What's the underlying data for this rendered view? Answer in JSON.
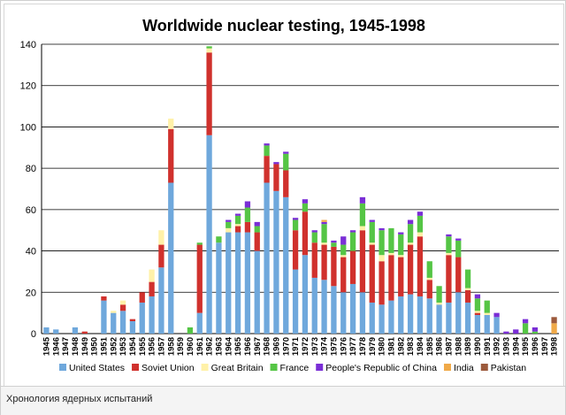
{
  "caption": "Хронология ядерных испытаний",
  "chart_data": {
    "type": "bar",
    "stacked": true,
    "title": "Worldwide nuclear testing, 1945-1998",
    "ylim": [
      0,
      140
    ],
    "yticks": [
      0,
      20,
      40,
      60,
      80,
      100,
      120,
      140
    ],
    "grid": true,
    "legend_position": "bottom",
    "categories": [
      "1945",
      "1946",
      "1947",
      "1948",
      "1949",
      "1950",
      "1951",
      "1952",
      "1953",
      "1954",
      "1955",
      "1956",
      "1957",
      "1958",
      "1959",
      "1960",
      "1961",
      "1962",
      "1963",
      "1964",
      "1965",
      "1966",
      "1967",
      "1968",
      "1969",
      "1970",
      "1971",
      "1972",
      "1973",
      "1974",
      "1975",
      "1976",
      "1977",
      "1978",
      "1979",
      "1980",
      "1981",
      "1982",
      "1983",
      "1984",
      "1985",
      "1986",
      "1987",
      "1988",
      "1989",
      "1990",
      "1991",
      "1992",
      "1993",
      "1994",
      "1995",
      "1996",
      "1997",
      "1998"
    ],
    "series": [
      {
        "name": "United States",
        "color": "#6fa8dc",
        "values": [
          3,
          2,
          0,
          3,
          0,
          0,
          16,
          10,
          11,
          6,
          15,
          18,
          32,
          73,
          0,
          0,
          10,
          96,
          44,
          49,
          49,
          49,
          40,
          73,
          69,
          66,
          31,
          38,
          27,
          26,
          23,
          20,
          24,
          20,
          15,
          14,
          16,
          18,
          19,
          18,
          17,
          14,
          15,
          20,
          15,
          9,
          9,
          8,
          0,
          0,
          0,
          0,
          0,
          0
        ]
      },
      {
        "name": "Soviet Union",
        "color": "#d0312d",
        "values": [
          0,
          0,
          0,
          0,
          1,
          0,
          2,
          0,
          3,
          1,
          5,
          7,
          11,
          26,
          0,
          0,
          33,
          40,
          0,
          0,
          3,
          5,
          9,
          13,
          13,
          13,
          19,
          21,
          17,
          17,
          19,
          17,
          16,
          30,
          28,
          21,
          22,
          19,
          24,
          29,
          9,
          0,
          23,
          17,
          6,
          1,
          0,
          0,
          0,
          0,
          0,
          0,
          0,
          0
        ]
      },
      {
        "name": "Great Britain",
        "color": "#fff1a8",
        "values": [
          0,
          0,
          0,
          0,
          0,
          0,
          0,
          1,
          2,
          0,
          0,
          6,
          7,
          5,
          0,
          0,
          0,
          2,
          0,
          2,
          1,
          0,
          0,
          0,
          0,
          0,
          0,
          0,
          0,
          1,
          0,
          1,
          0,
          2,
          1,
          3,
          1,
          1,
          1,
          2,
          1,
          1,
          1,
          0,
          1,
          1,
          1,
          0,
          0,
          0,
          0,
          0,
          0,
          0
        ]
      },
      {
        "name": "France",
        "color": "#55c545",
        "values": [
          0,
          0,
          0,
          0,
          0,
          0,
          0,
          0,
          0,
          0,
          0,
          0,
          0,
          0,
          0,
          3,
          1,
          1,
          3,
          3,
          4,
          7,
          3,
          5,
          0,
          8,
          5,
          4,
          5,
          9,
          2,
          5,
          9,
          11,
          10,
          12,
          12,
          10,
          9,
          8,
          8,
          8,
          8,
          8,
          9,
          6,
          6,
          0,
          0,
          0,
          5,
          1,
          0,
          0
        ]
      },
      {
        "name": "People's Republic of China",
        "color": "#7a2ed6",
        "values": [
          0,
          0,
          0,
          0,
          0,
          0,
          0,
          0,
          0,
          0,
          0,
          0,
          0,
          0,
          0,
          0,
          0,
          0,
          0,
          1,
          1,
          3,
          2,
          1,
          1,
          1,
          1,
          2,
          1,
          1,
          1,
          4,
          1,
          3,
          1,
          1,
          0,
          1,
          2,
          2,
          0,
          0,
          1,
          1,
          0,
          2,
          0,
          2,
          1,
          2,
          2,
          2,
          0,
          0
        ]
      },
      {
        "name": "India",
        "color": "#f0a948",
        "values": [
          0,
          0,
          0,
          0,
          0,
          0,
          0,
          0,
          0,
          0,
          0,
          0,
          0,
          0,
          0,
          0,
          0,
          0,
          0,
          0,
          0,
          0,
          0,
          0,
          0,
          0,
          0,
          0,
          0,
          1,
          0,
          0,
          0,
          0,
          0,
          0,
          0,
          0,
          0,
          0,
          0,
          0,
          0,
          0,
          0,
          0,
          0,
          0,
          0,
          0,
          0,
          0,
          0,
          5
        ]
      },
      {
        "name": "Pakistan",
        "color": "#9c5a3c",
        "values": [
          0,
          0,
          0,
          0,
          0,
          0,
          0,
          0,
          0,
          0,
          0,
          0,
          0,
          0,
          0,
          0,
          0,
          0,
          0,
          0,
          0,
          0,
          0,
          0,
          0,
          0,
          0,
          0,
          0,
          0,
          0,
          0,
          0,
          0,
          0,
          0,
          0,
          0,
          0,
          0,
          0,
          0,
          0,
          0,
          0,
          0,
          0,
          0,
          0,
          0,
          0,
          0,
          0,
          3
        ]
      }
    ]
  }
}
